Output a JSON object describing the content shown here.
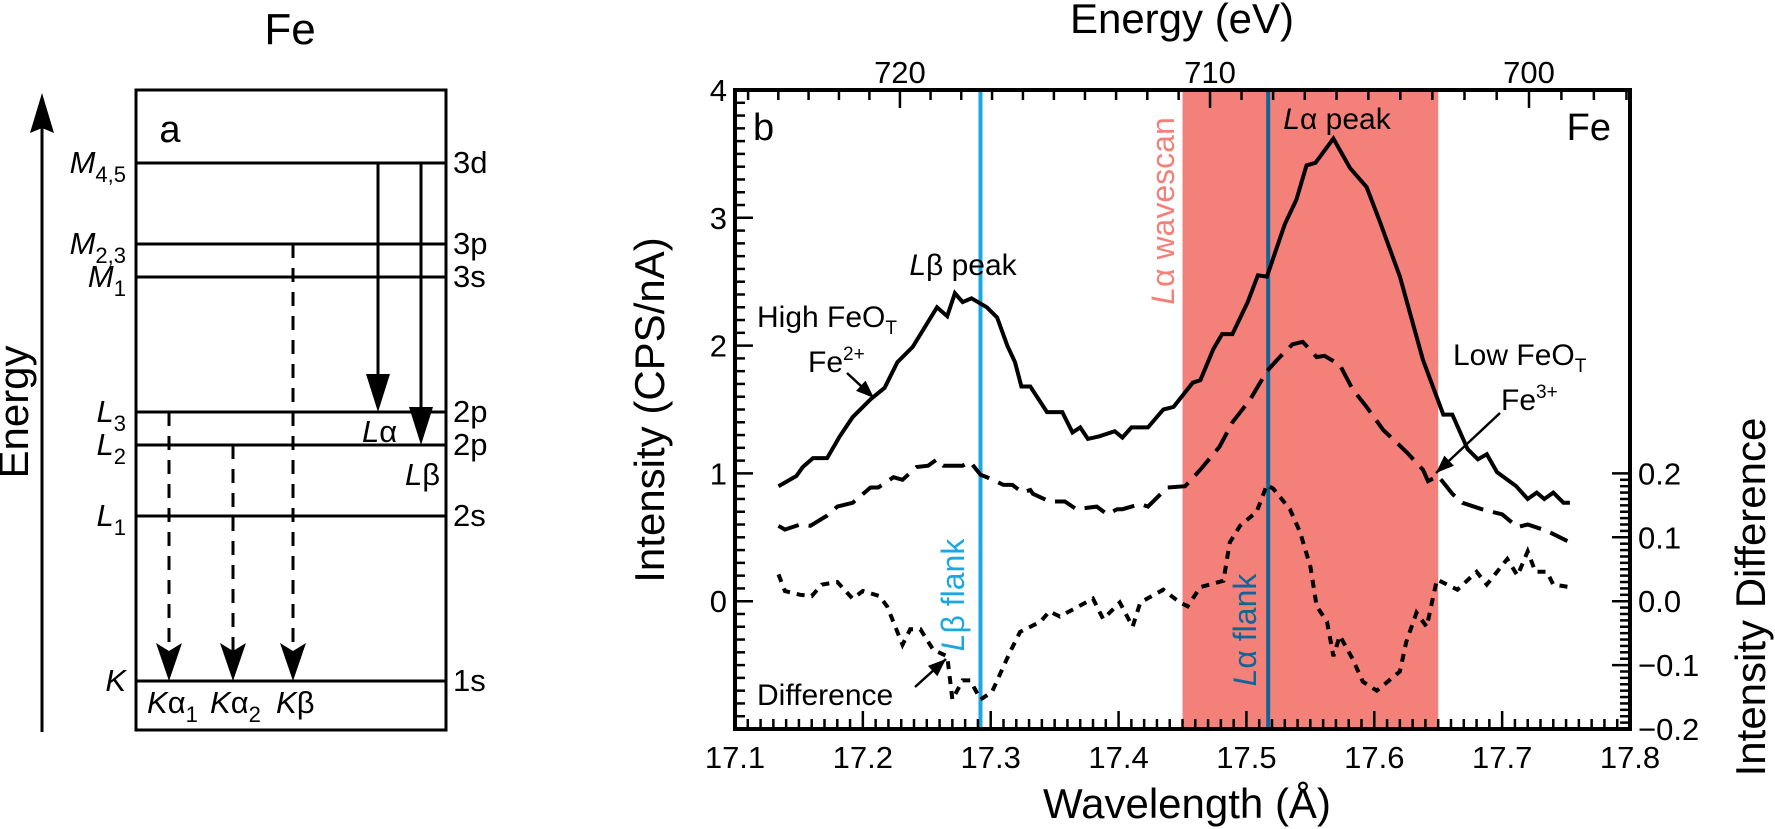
{
  "diagram": {
    "title": "Fe",
    "panel_label": "a",
    "axis_label": "Energy",
    "levels": [
      {
        "id": "M45",
        "symbol": "M",
        "sub": "4,5",
        "orbital": "3d"
      },
      {
        "id": "M23",
        "symbol": "M",
        "sub": "2,3",
        "orbital": "3p"
      },
      {
        "id": "M1",
        "symbol": "M",
        "sub": "1",
        "orbital": "3s"
      },
      {
        "id": "L3",
        "symbol": "L",
        "sub": "3",
        "orbital": "2p"
      },
      {
        "id": "L2",
        "symbol": "L",
        "sub": "2",
        "orbital": "2p"
      },
      {
        "id": "L1",
        "symbol": "L",
        "sub": "1",
        "orbital": "2s"
      },
      {
        "id": "K",
        "symbol": "K",
        "sub": "",
        "orbital": "1s"
      }
    ],
    "transitions": [
      {
        "symbol": "L",
        "line": "α",
        "sub": "",
        "from": "M45",
        "to": "L3",
        "style": "solid"
      },
      {
        "symbol": "L",
        "line": "β",
        "sub": "",
        "from": "M45",
        "to": "L2",
        "style": "solid"
      },
      {
        "symbol": "K",
        "line": "α",
        "sub": "1",
        "from": "L3",
        "to": "K",
        "style": "dashed"
      },
      {
        "symbol": "K",
        "line": "α",
        "sub": "2",
        "from": "L2",
        "to": "K",
        "style": "dashed"
      },
      {
        "symbol": "K",
        "line": "β",
        "sub": "",
        "from": "M23",
        "to": "K",
        "style": "dashed"
      }
    ]
  },
  "chart_data": {
    "type": "line",
    "panel_label": "b",
    "element": "Fe",
    "xlabel": "Wavelength (Å)",
    "xlim": [
      17.1,
      17.8
    ],
    "x_ticks": [
      "17.1",
      "17.2",
      "17.3",
      "17.4",
      "17.5",
      "17.6",
      "17.7",
      "17.8"
    ],
    "ylabel": "Intensity (CPS/nA)",
    "ylim": [
      -1,
      4
    ],
    "y_ticks": [
      "0",
      "1",
      "2",
      "3",
      "4"
    ],
    "y2label": "Intensity Difference",
    "y2lim": [
      -0.2,
      0.8
    ],
    "y2_ticks": [
      "0.2",
      "0.1",
      "0.0",
      "−0.1",
      "−0.2"
    ],
    "top_xlabel": "Energy (eV)",
    "top_ticks": [
      "720",
      "710",
      "700"
    ],
    "grid": false,
    "shaded_region": {
      "from": 17.45,
      "to": 17.65,
      "color": "#f4807a",
      "label_italic": "L",
      "label_rest": "α wavescan"
    },
    "vlines": [
      {
        "x": 17.292,
        "color": "#1ba7e0",
        "label_italic": "L",
        "label_rest": "β flank"
      },
      {
        "x": 17.517,
        "color": "#0f6696",
        "label_italic": "L",
        "label_rest": "α flank"
      }
    ],
    "peak_labels": [
      {
        "italic": "L",
        "rest": "β peak"
      },
      {
        "italic": "L",
        "rest": "α peak"
      }
    ],
    "colors": {
      "wavescan": "#f4807a",
      "lb_flank": "#1ba7e0",
      "la_flank": "#0f6696",
      "curves": "#000000"
    },
    "series": [
      {
        "name": "High FeO",
        "name_sub": "T",
        "ion": "Fe",
        "ion_sup": "2+",
        "axis": "left",
        "style": "solid",
        "x": [
          17.134,
          17.148,
          17.153,
          17.161,
          17.172,
          17.182,
          17.192,
          17.206,
          17.217,
          17.227,
          17.239,
          17.258,
          17.266,
          17.272,
          17.278,
          17.285,
          17.297,
          17.305,
          17.313,
          17.319,
          17.324,
          17.331,
          17.344,
          17.356,
          17.364,
          17.37,
          17.376,
          17.385,
          17.397,
          17.403,
          17.41,
          17.423,
          17.435,
          17.443,
          17.458,
          17.464,
          17.474,
          17.481,
          17.489,
          17.501,
          17.509,
          17.516,
          17.53,
          17.539,
          17.547,
          17.554,
          17.568,
          17.581,
          17.594,
          17.604,
          17.62,
          17.638,
          17.654,
          17.661,
          17.673,
          17.681,
          17.688,
          17.696,
          17.711,
          17.72,
          17.727,
          17.733,
          17.74,
          17.748,
          17.753
        ],
        "y": [
          0.9,
          0.98,
          1.05,
          1.12,
          1.12,
          1.29,
          1.44,
          1.58,
          1.67,
          1.87,
          1.99,
          2.3,
          2.23,
          2.41,
          2.34,
          2.37,
          2.3,
          2.22,
          2.0,
          1.87,
          1.68,
          1.68,
          1.48,
          1.48,
          1.32,
          1.36,
          1.27,
          1.29,
          1.33,
          1.28,
          1.36,
          1.36,
          1.5,
          1.52,
          1.71,
          1.73,
          1.97,
          2.09,
          2.09,
          2.34,
          2.55,
          2.54,
          2.95,
          3.14,
          3.41,
          3.43,
          3.62,
          3.39,
          3.24,
          2.98,
          2.54,
          1.89,
          1.46,
          1.46,
          1.19,
          1.11,
          1.15,
          1.01,
          0.9,
          0.8,
          0.85,
          0.8,
          0.85,
          0.77,
          0.77
        ]
      },
      {
        "name": "Low FeO",
        "name_sub": "T",
        "ion": "Fe",
        "ion_sup": "3+",
        "axis": "left",
        "style": "dashed",
        "x": [
          17.134,
          17.139,
          17.151,
          17.159,
          17.172,
          17.18,
          17.192,
          17.206,
          17.212,
          17.224,
          17.231,
          17.242,
          17.251,
          17.258,
          17.263,
          17.278,
          17.284,
          17.292,
          17.297,
          17.31,
          17.317,
          17.325,
          17.331,
          17.333,
          17.346,
          17.358,
          17.367,
          17.383,
          17.391,
          17.399,
          17.403,
          17.417,
          17.423,
          17.438,
          17.452,
          17.464,
          17.479,
          17.489,
          17.503,
          17.516,
          17.526,
          17.536,
          17.544,
          17.555,
          17.561,
          17.573,
          17.583,
          17.594,
          17.607,
          17.626,
          17.636,
          17.638,
          17.642,
          17.65,
          17.661,
          17.669,
          17.684,
          17.7,
          17.712,
          17.72,
          17.735,
          17.751
        ],
        "y": [
          0.59,
          0.56,
          0.6,
          0.59,
          0.67,
          0.74,
          0.77,
          0.89,
          0.89,
          0.97,
          0.95,
          1.05,
          1.06,
          1.11,
          1.06,
          1.06,
          1.09,
          0.99,
          0.97,
          0.91,
          0.91,
          0.85,
          0.87,
          0.84,
          0.78,
          0.78,
          0.72,
          0.74,
          0.68,
          0.72,
          0.72,
          0.76,
          0.74,
          0.89,
          0.9,
          1.03,
          1.21,
          1.4,
          1.58,
          1.8,
          1.91,
          2.01,
          2.03,
          1.91,
          1.92,
          1.85,
          1.66,
          1.52,
          1.34,
          1.16,
          1.05,
          1.03,
          0.94,
          0.98,
          0.84,
          0.77,
          0.72,
          0.68,
          0.58,
          0.6,
          0.55,
          0.47
        ]
      },
      {
        "name": "Difference",
        "axis": "right",
        "style": "dotted",
        "x": [
          17.134,
          17.139,
          17.151,
          17.16,
          17.168,
          17.18,
          17.192,
          17.2,
          17.213,
          17.219,
          17.231,
          17.237,
          17.245,
          17.255,
          17.266,
          17.27,
          17.278,
          17.284,
          17.292,
          17.301,
          17.315,
          17.323,
          17.339,
          17.346,
          17.354,
          17.38,
          17.388,
          17.401,
          17.411,
          17.417,
          17.435,
          17.448,
          17.454,
          17.464,
          17.482,
          17.487,
          17.495,
          17.508,
          17.516,
          17.521,
          17.534,
          17.542,
          17.55,
          17.555,
          17.563,
          17.568,
          17.573,
          17.583,
          17.591,
          17.602,
          17.62,
          17.625,
          17.633,
          17.641,
          17.649,
          17.665,
          17.68,
          17.688,
          17.704,
          17.712,
          17.72,
          17.726,
          17.735,
          17.74,
          17.753
        ],
        "y": [
          0.042,
          0.016,
          0.01,
          0.008,
          0.026,
          0.03,
          0.004,
          0.016,
          0.008,
          -0.008,
          -0.068,
          -0.044,
          -0.044,
          -0.076,
          -0.086,
          -0.154,
          -0.124,
          -0.124,
          -0.154,
          -0.142,
          -0.08,
          -0.048,
          -0.032,
          -0.016,
          -0.024,
          0.004,
          -0.028,
          -0.002,
          -0.04,
          -0.002,
          0.018,
          -0.002,
          -0.008,
          0.022,
          0.032,
          0.092,
          0.118,
          0.14,
          0.182,
          0.176,
          0.144,
          0.108,
          0.054,
          -0.008,
          -0.032,
          -0.086,
          -0.054,
          -0.09,
          -0.126,
          -0.14,
          -0.11,
          -0.064,
          -0.018,
          -0.04,
          0.034,
          0.018,
          0.046,
          0.026,
          0.066,
          0.04,
          0.078,
          0.046,
          0.046,
          0.026,
          0.022
        ]
      }
    ]
  }
}
